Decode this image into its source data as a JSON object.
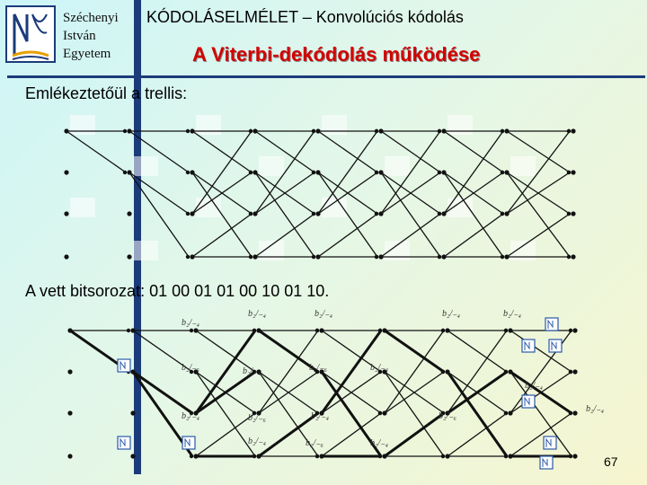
{
  "institution": {
    "line1": "Széchenyi",
    "line2": "István",
    "line3": "Egyetem"
  },
  "course_title": "KÓDOLÁSELMÉLET – Konvolúciós kódolás",
  "slide_title": "A Viterbi-dekódolás működése",
  "reminder_text": "Emlékeztetőül a trellis:",
  "received_text": "A vett bitsorozat: 01 00 01 01 00 10 01 10.",
  "page_number": "67",
  "metric_label": "b₂/₋₄",
  "metric_label_alt": "b₂/₋₆",
  "colors": {
    "accent_bar": "#1b3b7a",
    "title": "#d40000"
  }
}
